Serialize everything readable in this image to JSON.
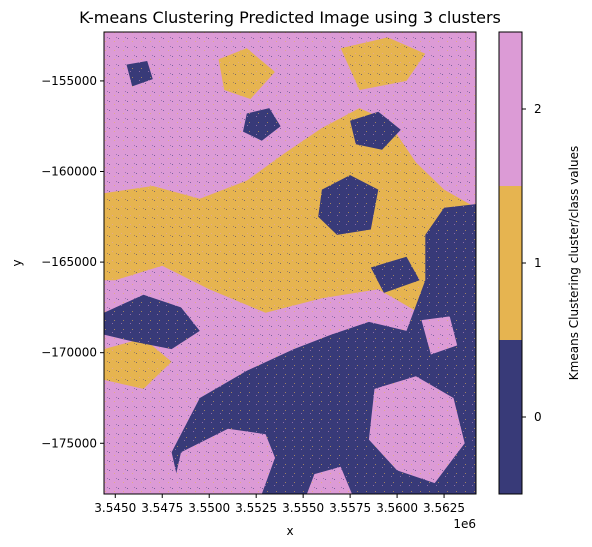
{
  "chart_data": {
    "type": "heatmap",
    "title": "K-means Clustering Predicted Image using 3 clusters",
    "xlabel": "x",
    "ylabel": "y",
    "x_offset_label": "1e6",
    "xlim": [
      3544400,
      3564200
    ],
    "ylim": [
      -177800,
      -152300
    ],
    "x_ticks": [
      {
        "value": 3545000,
        "label": "3.5450"
      },
      {
        "value": 3547500,
        "label": "3.5475"
      },
      {
        "value": 3550000,
        "label": "3.5500"
      },
      {
        "value": 3552500,
        "label": "3.5525"
      },
      {
        "value": 3555000,
        "label": "3.5550"
      },
      {
        "value": 3557500,
        "label": "3.5575"
      },
      {
        "value": 3560000,
        "label": "3.5600"
      },
      {
        "value": 3562500,
        "label": "3.5625"
      }
    ],
    "y_ticks": [
      {
        "value": -155000,
        "label": "−155000"
      },
      {
        "value": -160000,
        "label": "−160000"
      },
      {
        "value": -165000,
        "label": "−165000"
      },
      {
        "value": -170000,
        "label": "−170000"
      },
      {
        "value": -175000,
        "label": "−175000"
      }
    ],
    "classes": [
      {
        "value": 0,
        "label": "0",
        "color": "#383a78"
      },
      {
        "value": 1,
        "label": "1",
        "color": "#e6b450"
      },
      {
        "value": 2,
        "label": "2",
        "color": "#dc9bd6"
      }
    ],
    "colorbar_label": "Kmeans Clustering cluster/class values",
    "regions": [
      {
        "class": 2,
        "points": [
          [
            3544400,
            -152300
          ],
          [
            3564200,
            -152300
          ],
          [
            3564200,
            -177800
          ],
          [
            3544400,
            -177800
          ]
        ]
      },
      {
        "class": 1,
        "points": [
          [
            3544400,
            -161200
          ],
          [
            3547000,
            -160800
          ],
          [
            3549500,
            -161500
          ],
          [
            3552000,
            -160500
          ],
          [
            3554000,
            -159000
          ],
          [
            3556000,
            -157600
          ],
          [
            3558000,
            -156500
          ],
          [
            3559500,
            -157200
          ],
          [
            3561000,
            -159500
          ],
          [
            3562500,
            -161000
          ],
          [
            3564200,
            -162000
          ],
          [
            3564200,
            -168500
          ],
          [
            3561500,
            -168000
          ],
          [
            3559000,
            -166500
          ],
          [
            3556000,
            -167000
          ],
          [
            3553000,
            -167800
          ],
          [
            3550000,
            -166500
          ],
          [
            3547500,
            -165200
          ],
          [
            3545000,
            -166000
          ],
          [
            3544400,
            -166000
          ]
        ]
      },
      {
        "class": 1,
        "points": [
          [
            3550500,
            -153800
          ],
          [
            3552000,
            -153200
          ],
          [
            3553500,
            -154500
          ],
          [
            3552200,
            -156000
          ],
          [
            3550800,
            -155500
          ]
        ]
      },
      {
        "class": 1,
        "points": [
          [
            3557000,
            -153200
          ],
          [
            3559500,
            -152600
          ],
          [
            3561500,
            -153500
          ],
          [
            3560500,
            -155000
          ],
          [
            3558000,
            -155500
          ]
        ]
      },
      {
        "class": 1,
        "points": [
          [
            3544400,
            -169800
          ],
          [
            3546500,
            -169200
          ],
          [
            3548000,
            -170500
          ],
          [
            3546500,
            -172000
          ],
          [
            3544400,
            -171500
          ]
        ]
      },
      {
        "class": 0,
        "points": [
          [
            3548500,
            -177800
          ],
          [
            3548000,
            -175500
          ],
          [
            3549500,
            -172500
          ],
          [
            3552000,
            -171000
          ],
          [
            3554500,
            -169800
          ],
          [
            3556500,
            -169000
          ],
          [
            3558500,
            -168300
          ],
          [
            3560500,
            -168800
          ],
          [
            3561500,
            -166000
          ],
          [
            3561500,
            -163500
          ],
          [
            3562500,
            -162000
          ],
          [
            3564200,
            -161800
          ],
          [
            3564200,
            -177800
          ]
        ]
      },
      {
        "class": 0,
        "points": [
          [
            3544400,
            -167800
          ],
          [
            3546500,
            -166800
          ],
          [
            3548500,
            -167500
          ],
          [
            3549500,
            -168800
          ],
          [
            3548000,
            -169800
          ],
          [
            3546000,
            -169400
          ],
          [
            3544400,
            -169000
          ]
        ]
      },
      {
        "class": 0,
        "points": [
          [
            3556000,
            -161000
          ],
          [
            3557500,
            -160200
          ],
          [
            3559000,
            -161000
          ],
          [
            3558600,
            -163200
          ],
          [
            3556800,
            -163500
          ],
          [
            3555800,
            -162500
          ]
        ]
      },
      {
        "class": 0,
        "points": [
          [
            3557500,
            -157200
          ],
          [
            3559000,
            -156700
          ],
          [
            3560200,
            -157700
          ],
          [
            3559200,
            -158800
          ],
          [
            3557800,
            -158500
          ]
        ]
      },
      {
        "class": 0,
        "points": [
          [
            3552000,
            -156800
          ],
          [
            3553200,
            -156500
          ],
          [
            3553800,
            -157500
          ],
          [
            3552800,
            -158300
          ],
          [
            3551800,
            -157800
          ]
        ]
      },
      {
        "class": 0,
        "points": [
          [
            3545600,
            -154100
          ],
          [
            3546700,
            -153900
          ],
          [
            3547000,
            -154900
          ],
          [
            3545900,
            -155300
          ]
        ]
      },
      {
        "class": 0,
        "points": [
          [
            3558600,
            -165300
          ],
          [
            3560500,
            -164700
          ],
          [
            3561200,
            -166000
          ],
          [
            3559300,
            -166700
          ]
        ]
      },
      {
        "class": 2,
        "points": [
          [
            3548000,
            -177800
          ],
          [
            3548500,
            -175500
          ],
          [
            3551000,
            -174200
          ],
          [
            3553000,
            -174500
          ],
          [
            3553500,
            -175800
          ],
          [
            3552800,
            -177800
          ]
        ]
      },
      {
        "class": 2,
        "points": [
          [
            3558800,
            -172000
          ],
          [
            3561000,
            -171300
          ],
          [
            3563000,
            -172500
          ],
          [
            3563600,
            -175000
          ],
          [
            3562000,
            -177200
          ],
          [
            3560000,
            -176500
          ],
          [
            3558500,
            -174800
          ]
        ]
      },
      {
        "class": 2,
        "points": [
          [
            3555200,
            -177800
          ],
          [
            3555600,
            -176700
          ],
          [
            3557000,
            -176300
          ],
          [
            3557600,
            -177800
          ]
        ]
      },
      {
        "class": 2,
        "points": [
          [
            3561300,
            -168200
          ],
          [
            3562800,
            -168000
          ],
          [
            3563200,
            -169600
          ],
          [
            3561800,
            -170100
          ]
        ]
      }
    ]
  }
}
